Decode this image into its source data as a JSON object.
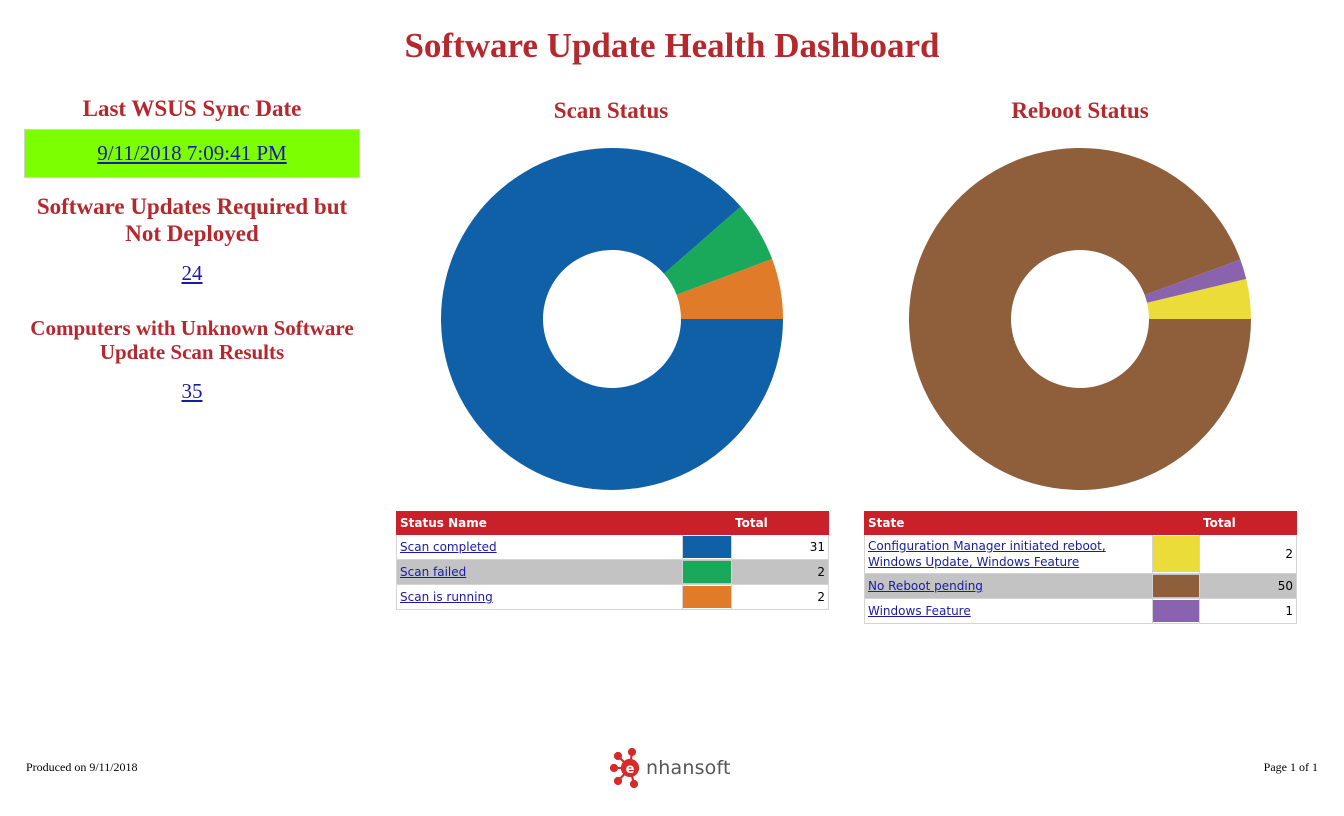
{
  "title": "Software Update Health Dashboard",
  "left": {
    "sync_title": "Last WSUS Sync Date",
    "sync_value": "9/11/2018 7:09:41 PM",
    "sync_color": "#7cff00",
    "required_title": "Software Updates Required but Not Deployed",
    "required_value": "24",
    "unknown_title": "Computers with Unknown Software Update Scan Results",
    "unknown_value": "35"
  },
  "scan_status": {
    "title": "Scan Status",
    "headers": [
      "Status Name",
      "Total"
    ],
    "rows": [
      {
        "name": "Scan completed",
        "total": 31,
        "color": "#1060a8"
      },
      {
        "name": "Scan failed",
        "total": 2,
        "color": "#1aa95a"
      },
      {
        "name": "Scan is running",
        "total": 2,
        "color": "#e07b2a"
      }
    ]
  },
  "reboot_status": {
    "title": "Reboot Status",
    "headers": [
      "State",
      "Total"
    ],
    "rows": [
      {
        "name": "Configuration Manager initiated reboot, Windows Update, Windows Feature",
        "total": 2,
        "color": "#ebdc3a"
      },
      {
        "name": "No Reboot pending",
        "total": 50,
        "color": "#8f5e3a"
      },
      {
        "name": "Windows Feature",
        "total": 1,
        "color": "#8a63ae"
      }
    ]
  },
  "chart_data": [
    {
      "type": "pie",
      "title": "Scan Status",
      "categories": [
        "Scan completed",
        "Scan failed",
        "Scan is running"
      ],
      "values": [
        31,
        2,
        2
      ]
    },
    {
      "type": "pie",
      "title": "Reboot Status",
      "categories": [
        "Configuration Manager initiated reboot, Windows Update, Windows Feature",
        "No Reboot pending",
        "Windows Feature"
      ],
      "values": [
        2,
        50,
        1
      ]
    }
  ],
  "footer": {
    "produced": "Produced on 9/11/2018",
    "page": "Page 1 of 1",
    "logo_text": "nhansoft"
  }
}
